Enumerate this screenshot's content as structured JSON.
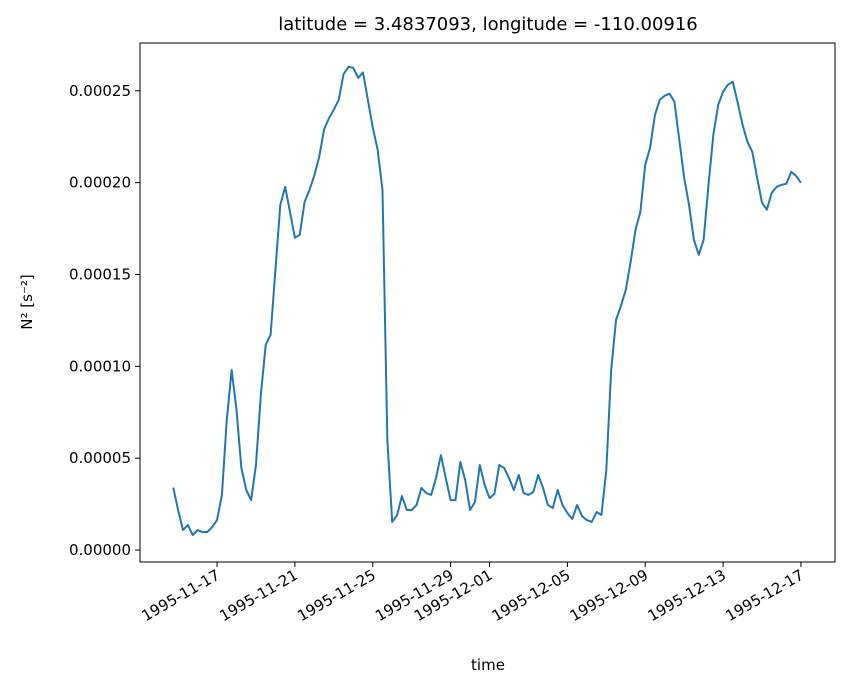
{
  "chart_data": {
    "type": "line",
    "title": "latitude = 3.4837093, longitude = -110.00916",
    "x_label": "time",
    "y_label": "N² [s⁻²]",
    "color": "#1f77b4",
    "x": [
      "1995-11-14T18:00",
      "1995-11-15T00:00",
      "1995-11-15T06:00",
      "1995-11-15T12:00",
      "1995-11-15T18:00",
      "1995-11-16T00:00",
      "1995-11-16T06:00",
      "1995-11-16T12:00",
      "1995-11-16T18:00",
      "1995-11-17T00:00",
      "1995-11-17T06:00",
      "1995-11-17T12:00",
      "1995-11-17T18:00",
      "1995-11-18T00:00",
      "1995-11-18T06:00",
      "1995-11-18T12:00",
      "1995-11-18T18:00",
      "1995-11-19T00:00",
      "1995-11-19T06:00",
      "1995-11-19T12:00",
      "1995-11-19T18:00",
      "1995-11-20T00:00",
      "1995-11-20T06:00",
      "1995-11-20T12:00",
      "1995-11-20T18:00",
      "1995-11-21T00:00",
      "1995-11-21T06:00",
      "1995-11-21T12:00",
      "1995-11-21T18:00",
      "1995-11-22T00:00",
      "1995-11-22T06:00",
      "1995-11-22T12:00",
      "1995-11-22T18:00",
      "1995-11-23T00:00",
      "1995-11-23T06:00",
      "1995-11-23T12:00",
      "1995-11-23T18:00",
      "1995-11-24T00:00",
      "1995-11-24T06:00",
      "1995-11-24T12:00",
      "1995-11-24T18:00",
      "1995-11-25T00:00",
      "1995-11-25T06:00",
      "1995-11-25T12:00",
      "1995-11-25T18:00",
      "1995-11-26T00:00",
      "1995-11-26T06:00",
      "1995-11-26T12:00",
      "1995-11-26T18:00",
      "1995-11-27T00:00",
      "1995-11-27T06:00",
      "1995-11-27T12:00",
      "1995-11-27T18:00",
      "1995-11-28T00:00",
      "1995-11-28T06:00",
      "1995-11-28T12:00",
      "1995-11-28T18:00",
      "1995-11-29T00:00",
      "1995-11-29T06:00",
      "1995-11-29T12:00",
      "1995-11-29T18:00",
      "1995-11-30T00:00",
      "1995-11-30T06:00",
      "1995-11-30T12:00",
      "1995-11-30T18:00",
      "1995-12-01T00:00",
      "1995-12-01T06:00",
      "1995-12-01T12:00",
      "1995-12-01T18:00",
      "1995-12-02T00:00",
      "1995-12-02T06:00",
      "1995-12-02T12:00",
      "1995-12-02T18:00",
      "1995-12-03T00:00",
      "1995-12-03T06:00",
      "1995-12-03T12:00",
      "1995-12-03T18:00",
      "1995-12-04T00:00",
      "1995-12-04T06:00",
      "1995-12-04T12:00",
      "1995-12-04T18:00",
      "1995-12-05T00:00",
      "1995-12-05T06:00",
      "1995-12-05T12:00",
      "1995-12-05T18:00",
      "1995-12-06T00:00",
      "1995-12-06T06:00",
      "1995-12-06T12:00",
      "1995-12-06T18:00",
      "1995-12-07T00:00",
      "1995-12-07T06:00",
      "1995-12-07T12:00",
      "1995-12-07T18:00",
      "1995-12-08T00:00",
      "1995-12-08T06:00",
      "1995-12-08T12:00",
      "1995-12-08T18:00",
      "1995-12-09T00:00",
      "1995-12-09T06:00",
      "1995-12-09T12:00",
      "1995-12-09T18:00",
      "1995-12-10T00:00",
      "1995-12-10T06:00",
      "1995-12-10T12:00",
      "1995-12-10T18:00",
      "1995-12-11T00:00",
      "1995-12-11T06:00",
      "1995-12-11T12:00",
      "1995-12-11T18:00",
      "1995-12-12T00:00",
      "1995-12-12T06:00",
      "1995-12-12T12:00",
      "1995-12-12T18:00",
      "1995-12-13T00:00",
      "1995-12-13T06:00",
      "1995-12-13T12:00",
      "1995-12-13T18:00",
      "1995-12-14T00:00",
      "1995-12-14T06:00",
      "1995-12-14T12:00",
      "1995-12-14T18:00",
      "1995-12-15T00:00",
      "1995-12-15T06:00",
      "1995-12-15T12:00",
      "1995-12-15T18:00",
      "1995-12-16T00:00",
      "1995-12-16T06:00",
      "1995-12-16T12:00",
      "1995-12-16T18:00",
      "1995-12-17T00:00"
    ],
    "values": [
      3.4e-05,
      2.18e-05,
      1.09e-05,
      1.36e-05,
      8.2e-06,
      1.09e-05,
      9.8e-06,
      9.8e-06,
      1.25e-05,
      1.63e-05,
      3e-05,
      7.08e-05,
      9.8e-05,
      7.63e-05,
      4.47e-05,
      3.27e-05,
      2.72e-05,
      4.63e-05,
      8.44e-05,
      0.0001117,
      0.0001171,
      0.0001525,
      0.0001879,
      0.0001977,
      0.000184,
      0.00017,
      0.0001716,
      0.0001896,
      0.000196,
      0.000204,
      0.000214,
      0.000229,
      0.000235,
      0.0002397,
      0.000245,
      0.000259,
      0.000263,
      0.0002625,
      0.000257,
      0.00026,
      0.000245,
      0.00023,
      0.000218,
      0.000196,
      5.99e-05,
      1.53e-05,
      1.9e-05,
      2.94e-05,
      2.18e-05,
      2.18e-05,
      2.45e-05,
      3.38e-05,
      3.1e-05,
      3e-05,
      3.92e-05,
      5.17e-05,
      3.92e-05,
      2.72e-05,
      2.72e-05,
      4.79e-05,
      3.81e-05,
      2.18e-05,
      2.61e-05,
      4.63e-05,
      3.54e-05,
      2.83e-05,
      3.05e-05,
      4.63e-05,
      4.47e-05,
      3.92e-05,
      3.27e-05,
      4.09e-05,
      3.1e-05,
      3e-05,
      3.16e-05,
      4.09e-05,
      3.38e-05,
      2.45e-05,
      2.29e-05,
      3.27e-05,
      2.45e-05,
      2.02e-05,
      1.69e-05,
      2.45e-05,
      1.85e-05,
      1.63e-05,
      1.53e-05,
      2.07e-05,
      1.91e-05,
      4.36e-05,
      9.8e-05,
      0.0001253,
      0.0001329,
      0.0001416,
      0.0001569,
      0.0001743,
      0.0001841,
      0.0002097,
      0.000219,
      0.0002369,
      0.0002451,
      0.0002473,
      0.0002484,
      0.000244,
      0.0002233,
      0.0002026,
      0.0001879,
      0.0001689,
      0.0001607,
      0.0001689,
      0.0001988,
      0.000226,
      0.0002424,
      0.0002495,
      0.0002533,
      0.0002549,
      0.0002435,
      0.0002315,
      0.0002222,
      0.0002168,
      0.0002026,
      0.000189,
      0.0001853,
      0.0001945,
      0.0001977,
      0.0001988,
      0.0001994,
      0.0002059,
      0.0002037,
      0.0001999
    ],
    "xlim": [
      "1995-11-13T01:00",
      "1995-12-18T18:00"
    ],
    "xticks": [
      "1995-11-17",
      "1995-11-21",
      "1995-11-25",
      "1995-11-29",
      "1995-12-01",
      "1995-12-05",
      "1995-12-09",
      "1995-12-13",
      "1995-12-17"
    ],
    "ylim": [
      -6.5e-06,
      0.000276
    ],
    "yticks": [
      {
        "value": 0,
        "label": "0.00000"
      },
      {
        "value": 5e-05,
        "label": "0.00005"
      },
      {
        "value": 0.0001,
        "label": "0.00010"
      },
      {
        "value": 0.00015,
        "label": "0.00015"
      },
      {
        "value": 0.0002,
        "label": "0.00020"
      },
      {
        "value": 0.00025,
        "label": "0.00025"
      }
    ]
  }
}
